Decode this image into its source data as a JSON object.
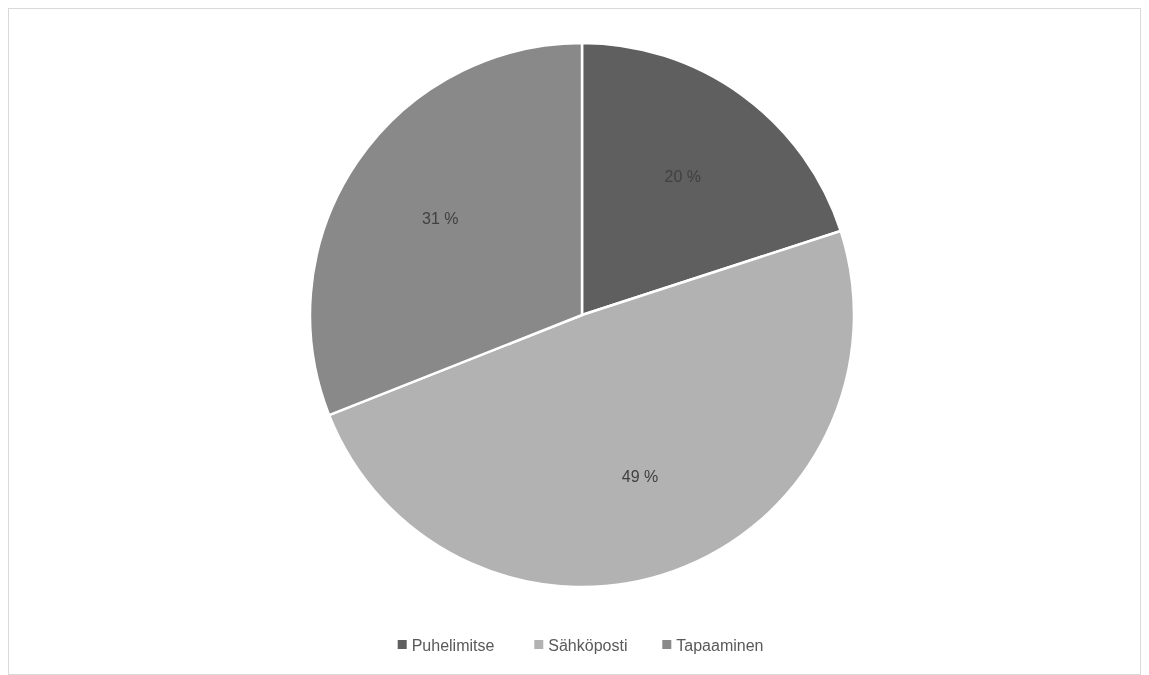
{
  "chart_data": {
    "type": "pie",
    "categories": [
      "Puhelimitse",
      "Sähköposti",
      "Tapaaminen"
    ],
    "values": [
      20,
      49,
      31
    ],
    "colors": [
      "#5f5f5f",
      "#b2b2b2",
      "#898989"
    ],
    "value_labels": [
      "20 %",
      "49 %",
      "31 %"
    ],
    "legend": "bottom"
  }
}
